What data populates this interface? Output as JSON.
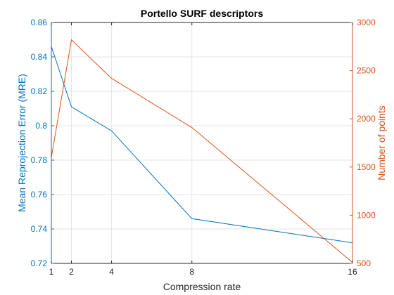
{
  "chart_data": {
    "type": "line",
    "title": "Portello SURF descriptors",
    "xlabel": "Compression rate",
    "xlim": [
      1,
      16
    ],
    "x_ticks": [
      1,
      2,
      4,
      8,
      16
    ],
    "grid": true,
    "colors": {
      "left": "#0072BD",
      "right": "#D95319",
      "grid": "#e6e6e6",
      "axis": "#262626"
    },
    "left_axis": {
      "label": "Mean Reprojection Error (MRE)",
      "ylim": [
        0.72,
        0.86
      ],
      "ticks": [
        0.72,
        0.74,
        0.76,
        0.78,
        0.8,
        0.82,
        0.84,
        0.86
      ],
      "tick_labels": [
        "0.72",
        "0.74",
        "0.76",
        "0.78",
        "0.8",
        "0.82",
        "0.84",
        "0.86"
      ]
    },
    "right_axis": {
      "label": "Number of points",
      "ylim": [
        500,
        3000
      ],
      "ticks": [
        500,
        1000,
        1500,
        2000,
        2500,
        3000
      ],
      "tick_labels": [
        "500",
        "1000",
        "1500",
        "2000",
        "2500",
        "3000"
      ]
    },
    "series": [
      {
        "axis": "left",
        "x": [
          1,
          2,
          4,
          8,
          16
        ],
        "values": [
          0.846,
          0.811,
          0.797,
          0.746,
          0.732
        ]
      },
      {
        "axis": "right",
        "x": [
          1,
          2,
          4,
          8,
          16
        ],
        "values": [
          1600,
          2820,
          2420,
          1910,
          510
        ]
      }
    ]
  }
}
